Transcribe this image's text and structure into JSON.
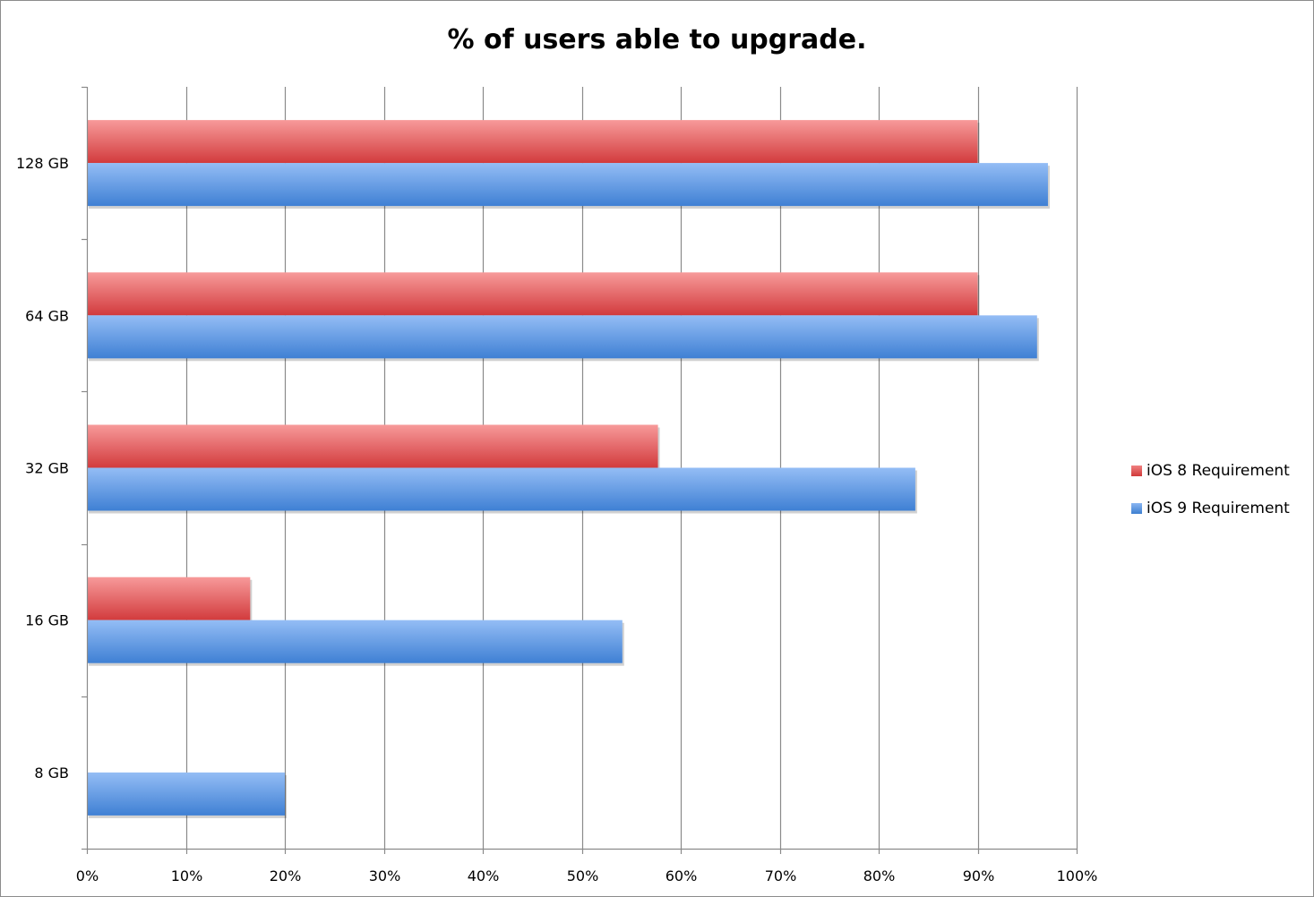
{
  "chart_data": {
    "type": "bar",
    "orientation": "horizontal",
    "title": "% of users able to upgrade.",
    "categories": [
      "128 GB",
      "64 GB",
      "32 GB",
      "16 GB",
      "8 GB"
    ],
    "series": [
      {
        "name": "iOS 8 Requirement",
        "color": "#e0474a",
        "values": [
          90,
          90,
          57.7,
          16.5,
          0
        ]
      },
      {
        "name": "iOS 9 Requirement",
        "color": "#4a89dc",
        "values": [
          97.1,
          96,
          83.7,
          54.1,
          20
        ]
      }
    ],
    "xlim": [
      0,
      100
    ],
    "xticks": [
      "0%",
      "10%",
      "20%",
      "30%",
      "40%",
      "50%",
      "60%",
      "70%",
      "80%",
      "90%",
      "100%"
    ],
    "grid": true,
    "legend_position": "right"
  }
}
